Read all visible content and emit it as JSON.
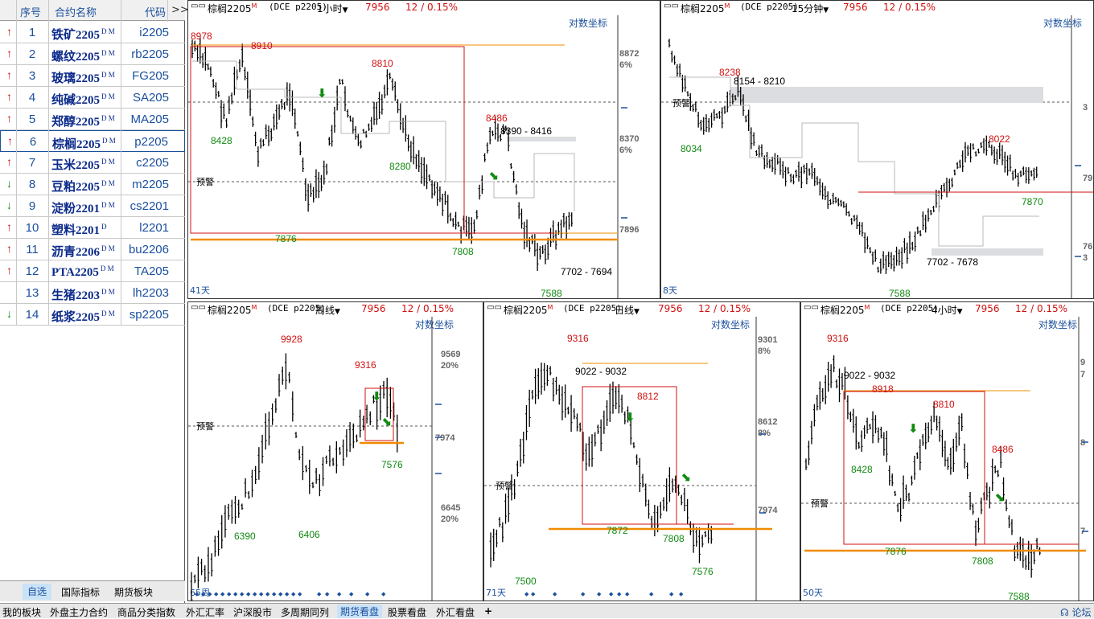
{
  "watchlist": {
    "headers": {
      "index": "序号",
      "name": "合约名称",
      "code": "代码",
      "more": ">>"
    },
    "rows": [
      {
        "no": "1",
        "name": "铁矿2205",
        "flags": "D M",
        "code": "i2205",
        "dir": "up"
      },
      {
        "no": "2",
        "name": "螺纹2205",
        "flags": "D M",
        "code": "rb2205",
        "dir": "up"
      },
      {
        "no": "3",
        "name": "玻璃2205",
        "flags": "D M",
        "code": "FG205",
        "dir": "up"
      },
      {
        "no": "4",
        "name": "纯碱2205",
        "flags": "D M",
        "code": "SA205",
        "dir": "up"
      },
      {
        "no": "5",
        "name": "郑醇2205",
        "flags": "D M",
        "code": "MA205",
        "dir": "up"
      },
      {
        "no": "6",
        "name": "棕榈2205",
        "flags": "D M",
        "code": "p2205",
        "dir": "up"
      },
      {
        "no": "7",
        "name": "玉米2205",
        "flags": "D M",
        "code": "c2205",
        "dir": "up"
      },
      {
        "no": "8",
        "name": "豆粕2205",
        "flags": "D M",
        "code": "m2205",
        "dir": "down"
      },
      {
        "no": "9",
        "name": "淀粉2201",
        "flags": "D M",
        "code": "cs2201",
        "dir": "down"
      },
      {
        "no": "10",
        "name": "塑料2201",
        "flags": "D",
        "code": "l2201",
        "dir": "up"
      },
      {
        "no": "11",
        "name": "沥青2206",
        "flags": "D M",
        "code": "bu2206",
        "dir": "up"
      },
      {
        "no": "12",
        "name": "PTA2205",
        "flags": "D M",
        "code": "TA205",
        "dir": "up"
      },
      {
        "no": "13",
        "name": "生猪2203",
        "flags": "D M",
        "code": "lh2203",
        "dir": "none"
      },
      {
        "no": "14",
        "name": "纸浆2205",
        "flags": "D M",
        "code": "sp2205",
        "dir": "down"
      }
    ],
    "tabs": [
      "自选",
      "国际指标",
      "期货板块"
    ]
  },
  "common": {
    "symbol": "棕榈2205",
    "sup": "M",
    "exch": "(DCE p2205)",
    "price": "7956",
    "change": "12 / 0.15%",
    "logcoord": "对数坐标",
    "alert": "预警"
  },
  "panels": {
    "p1": {
      "period": "1小时",
      "days": "41天",
      "labels": [
        "8978",
        "8910",
        "8810",
        "8486",
        "8428",
        "8280",
        "7876",
        "7808",
        "7588",
        "8390 - 8416",
        "7702 - 7694"
      ],
      "axis": [
        "8872",
        "6%",
        "8370",
        "6%",
        "7896"
      ]
    },
    "p2": {
      "period": "15分钟",
      "days": "8天",
      "labels": [
        "8238",
        "8154 - 8210",
        "8034",
        "8022",
        "7870",
        "7702 - 7678",
        "7588"
      ],
      "axis": [
        "3",
        "79",
        "76",
        "3"
      ]
    },
    "p3": {
      "period": "周线",
      "days": "65周",
      "labels": [
        "9928",
        "9316",
        "6390",
        "6406",
        "7576"
      ],
      "axis": [
        "9569",
        "20%",
        "7974",
        "6645",
        "20%"
      ]
    },
    "p4": {
      "period": "日线",
      "days": "71天",
      "labels": [
        "9316",
        "9022 - 9032",
        "8812",
        "7872",
        "7808",
        "7576",
        "7500"
      ],
      "axis": [
        "9301",
        "8%",
        "8612",
        "8%",
        "7974"
      ]
    },
    "p5": {
      "period": "4小时",
      "days": "50天",
      "labels": [
        "9316",
        "9022 - 9032",
        "8918",
        "8810",
        "8486",
        "8428",
        "7876",
        "7808",
        "7588"
      ],
      "axis": [
        "9",
        "7",
        "8",
        "7"
      ]
    }
  },
  "bottom_tabs": [
    "我的板块",
    "外盘主力合约",
    "商品分类指数",
    "外汇汇率",
    "沪深股市",
    "多周期同列",
    "期货看盘",
    "股票看盘",
    "外汇看盘",
    "+",
    "论坛"
  ],
  "colors": {
    "up": "#d01010",
    "down": "#118a11",
    "accent": "#1a4f9c",
    "orange": "#f08c00"
  }
}
